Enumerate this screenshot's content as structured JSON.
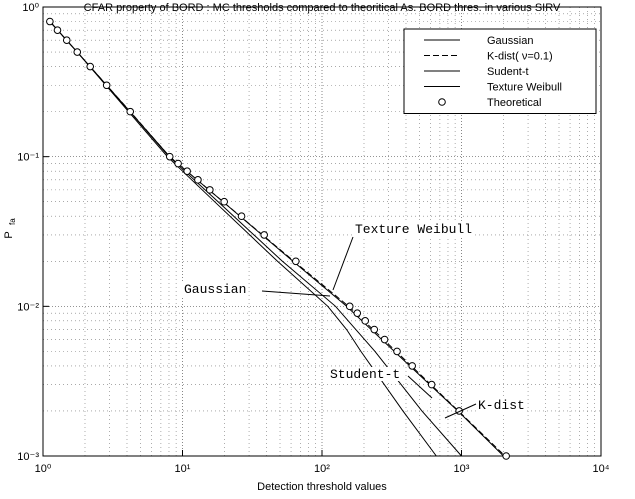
{
  "chart_data": {
    "type": "line",
    "title": "CFAR property of BORD : MC thresholds compared to theoritical As. BORD thres. in various SIRV",
    "xlabel": "Detection threshold values",
    "ylabel": "P",
    "ylabel_sub": "fa",
    "xscale": "log",
    "yscale": "log",
    "xlim": [
      1,
      10000
    ],
    "ylim": [
      0.001,
      1
    ],
    "xticks": [
      {
        "value": 1,
        "label": "10⁰"
      },
      {
        "value": 10,
        "label": "10¹"
      },
      {
        "value": 100,
        "label": "10²"
      },
      {
        "value": 1000,
        "label": "10³"
      },
      {
        "value": 10000,
        "label": "10⁴"
      }
    ],
    "yticks": [
      {
        "value": 0.001,
        "label": "10⁻³"
      },
      {
        "value": 0.01,
        "label": "10⁻²"
      },
      {
        "value": 0.1,
        "label": "10⁻¹"
      },
      {
        "value": 1,
        "label": "10⁰"
      }
    ],
    "grid": true,
    "legend": "upper right",
    "series": [
      {
        "name": "Gaussian",
        "color": "#000000",
        "style": "solid",
        "x": [
          1.12,
          1.76,
          4.2,
          8.0,
          18,
          52,
          125,
          240,
          520,
          1000
        ],
        "values": [
          0.8,
          0.5,
          0.2,
          0.1,
          0.05,
          0.02,
          0.01,
          0.005,
          0.002,
          0.001
        ]
      },
      {
        "name": "K-dist( ν=0.1)",
        "color": "#000000",
        "style": "dashed",
        "x": [
          1.12,
          1.76,
          4.22,
          8.1,
          19.5,
          63,
          155,
          340,
          950,
          2050
        ],
        "values": [
          0.8,
          0.5,
          0.2,
          0.1,
          0.05,
          0.02,
          0.01,
          0.005,
          0.002,
          0.001
        ]
      },
      {
        "name": "Sudent-t",
        "color": "#000000",
        "style": "solid",
        "x": [
          1.12,
          1.76,
          4.1,
          7.8,
          17,
          48,
          110,
          150,
          190,
          380,
          660
        ],
        "values": [
          0.8,
          0.5,
          0.2,
          0.1,
          0.05,
          0.02,
          0.01,
          0.007,
          0.005,
          0.002,
          0.001
        ]
      },
      {
        "name": "Texture Weibull",
        "color": "#000000",
        "style": "solid",
        "x": [
          1.12,
          1.76,
          4.2,
          8.1,
          19.5,
          62,
          150,
          330,
          940,
          2000
        ],
        "values": [
          0.8,
          0.5,
          0.2,
          0.1,
          0.05,
          0.02,
          0.01,
          0.005,
          0.002,
          0.001
        ]
      },
      {
        "name": "Theoretical",
        "color": "#000000",
        "style": "circle",
        "x": [
          1.12,
          1.27,
          1.48,
          1.76,
          2.18,
          2.86,
          4.22,
          8.1,
          9.3,
          10.8,
          12.9,
          15.7,
          19.9,
          26.5,
          38.5,
          64.9,
          158,
          179,
          204,
          237,
          281,
          345,
          443,
          611,
          962,
          2090
        ],
        "values": [
          0.8,
          0.7,
          0.6,
          0.5,
          0.4,
          0.3,
          0.2,
          0.1,
          0.09,
          0.08,
          0.07,
          0.06,
          0.05,
          0.04,
          0.03,
          0.02,
          0.01,
          0.009,
          0.008,
          0.007,
          0.006,
          0.005,
          0.004,
          0.003,
          0.002,
          0.001
        ]
      }
    ],
    "annotations": [
      "Texture Weibull",
      "Gaussian",
      "Student-t",
      "K-dist"
    ]
  }
}
